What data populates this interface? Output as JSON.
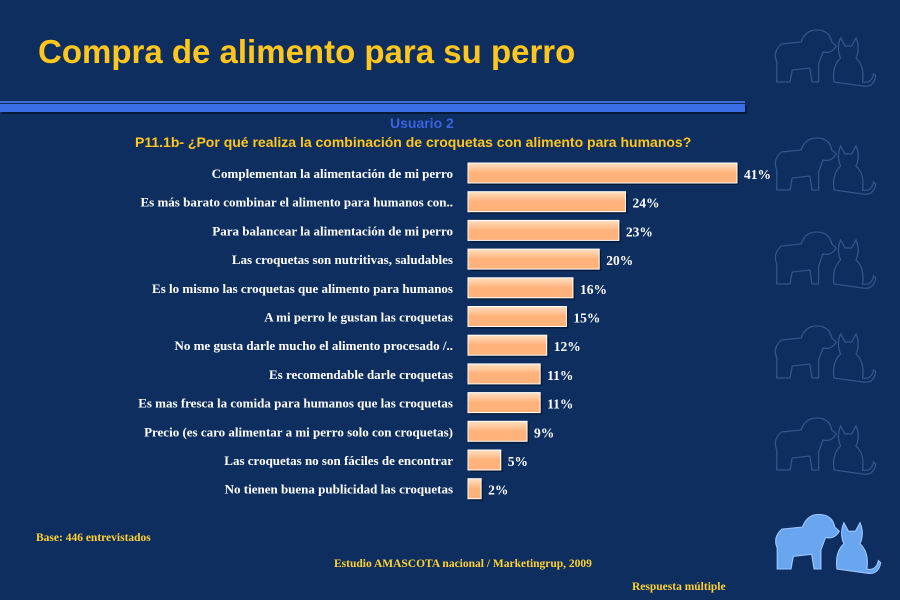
{
  "header": {
    "title": "Compra de alimento para su perro",
    "subtitle": "Usuario 2",
    "question": "P11.1b- ¿Por qué realiza la combinación de croquetas con alimento para humanos?"
  },
  "chart_data": {
    "type": "bar",
    "orientation": "horizontal",
    "categories": [
      "Complementan la alimentación de mi perro",
      "Es más barato combinar el alimento para humanos con..",
      "Para balancear la alimentación de mi perro",
      "Las croquetas son nutritivas, saludables",
      "Es lo mismo las croquetas que alimento para humanos",
      "A mi perro le gustan las croquetas",
      "No me gusta darle mucho el alimento procesado /..",
      "Es recomendable darle croquetas",
      "Es mas fresca la comida para humanos que las croquetas",
      "Precio (es caro alimentar a mi perro solo con croquetas)",
      "Las croquetas no son fáciles de encontrar",
      "No tienen buena publicidad las croquetas"
    ],
    "values": [
      41,
      24,
      23,
      20,
      16,
      15,
      12,
      11,
      11,
      9,
      5,
      2
    ],
    "data_labels": [
      "41%",
      "24%",
      "23%",
      "20%",
      "16%",
      "15%",
      "12%",
      "11%",
      "11%",
      "9%",
      "5%",
      "2%"
    ],
    "xlim": [
      0,
      41
    ],
    "grid": false,
    "colors": {
      "bar_fill": "#ffb27a",
      "bar_fill_light": "#ffe0c2",
      "bar_border": "#ffffff",
      "label": "#ffffff"
    }
  },
  "footer": {
    "base": "Base: 446 entrevistados",
    "source": "Estudio AMASCOTA nacional  / Marketingrup, 2009",
    "note": "Respuesta múltiple"
  },
  "decorations": {
    "icon": "dog-and-cat-silhouette-icon",
    "colors": {
      "background": "#0d2e5e",
      "title": "#ffc61e",
      "accent_bar": "#3a6ee6",
      "icon_faint": "#3c5f94",
      "icon_bright": "#6aa6f0"
    }
  }
}
